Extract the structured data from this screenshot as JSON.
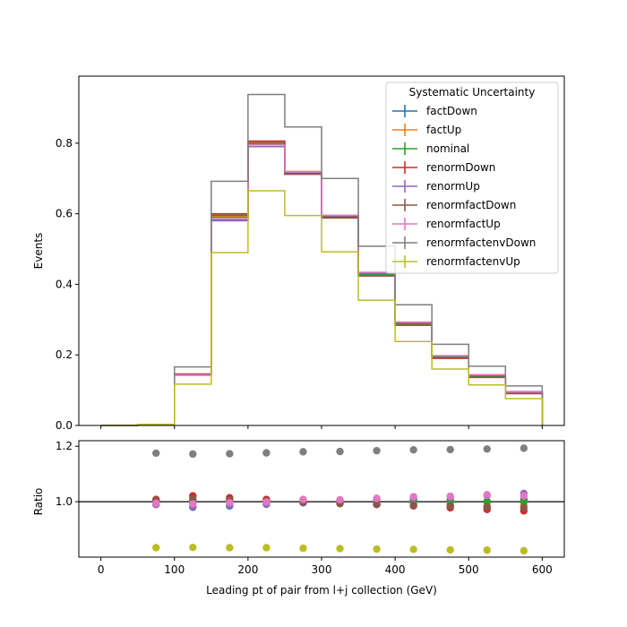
{
  "chart_data": [
    {
      "type": "line",
      "drawstyle": "steps",
      "ylabel": "Events",
      "xlim": [
        -30,
        630
      ],
      "ylim": [
        0,
        0.99
      ],
      "yticks": [
        0.0,
        0.2,
        0.4,
        0.6,
        0.8
      ],
      "ytick_labels": [
        "0.0",
        "0.2",
        "0.4",
        "0.6",
        "0.8"
      ],
      "bin_edges": [
        0,
        50,
        100,
        150,
        200,
        250,
        300,
        350,
        400,
        450,
        500,
        550,
        600
      ],
      "legend": {
        "title": "Systematic Uncertainty",
        "placement": "upper right"
      },
      "series": [
        {
          "name": "factDown",
          "color": "#1f77b4",
          "values": [
            0.0,
            0.003,
            0.143,
            0.582,
            0.79,
            0.712,
            0.592,
            0.428,
            0.29,
            0.195,
            0.14,
            0.094
          ]
        },
        {
          "name": "factUp",
          "color": "#ff7f0e",
          "values": [
            0.0,
            0.003,
            0.145,
            0.592,
            0.8,
            0.714,
            0.59,
            0.426,
            0.286,
            0.192,
            0.138,
            0.092
          ]
        },
        {
          "name": "nominal",
          "color": "#2ca02c",
          "values": [
            0.0,
            0.003,
            0.144,
            0.59,
            0.797,
            0.714,
            0.592,
            0.428,
            0.288,
            0.194,
            0.14,
            0.093
          ]
        },
        {
          "name": "renormDown",
          "color": "#d62728",
          "values": [
            0.0,
            0.003,
            0.146,
            0.6,
            0.806,
            0.713,
            0.59,
            0.424,
            0.284,
            0.19,
            0.136,
            0.09
          ]
        },
        {
          "name": "renormUp",
          "color": "#9467bd",
          "values": [
            0.0,
            0.003,
            0.142,
            0.58,
            0.79,
            0.718,
            0.594,
            0.432,
            0.292,
            0.197,
            0.143,
            0.096
          ]
        },
        {
          "name": "renormfactDown",
          "color": "#8c564b",
          "values": [
            0.0,
            0.003,
            0.145,
            0.596,
            0.802,
            0.712,
            0.588,
            0.424,
            0.284,
            0.191,
            0.137,
            0.091
          ]
        },
        {
          "name": "renormfactUp",
          "color": "#e377c2",
          "values": [
            0.0,
            0.003,
            0.143,
            0.585,
            0.795,
            0.72,
            0.596,
            0.434,
            0.293,
            0.198,
            0.144,
            0.095
          ]
        },
        {
          "name": "renormfactenvDown",
          "color": "#7f7f7f",
          "values": [
            0.0,
            0.003,
            0.166,
            0.692,
            0.938,
            0.846,
            0.7,
            0.508,
            0.342,
            0.23,
            0.168,
            0.112
          ]
        },
        {
          "name": "renormfactenvUp",
          "color": "#bcbd22",
          "values": [
            0.0,
            0.003,
            0.117,
            0.49,
            0.665,
            0.595,
            0.492,
            0.355,
            0.238,
            0.16,
            0.115,
            0.076
          ]
        }
      ]
    },
    {
      "type": "scatter",
      "xlabel": "Leading pt of pair from l+j collection (GeV)",
      "ylabel": "Ratio",
      "xlim": [
        -30,
        630
      ],
      "ylim": [
        0.8,
        1.22
      ],
      "xticks": [
        0,
        100,
        200,
        300,
        400,
        500,
        600
      ],
      "xtick_labels": [
        "0",
        "100",
        "200",
        "300",
        "400",
        "500",
        "600"
      ],
      "yticks": [
        1.0,
        1.2
      ],
      "ytick_labels": [
        "1.0",
        "1.2"
      ],
      "reference_line": 1.0,
      "x": [
        75,
        125,
        175,
        225,
        275,
        325,
        375,
        425,
        475,
        525,
        575
      ],
      "series": [
        {
          "name": "factDown",
          "color": "#1f77b4",
          "values": [
            0.99,
            0.98,
            0.985,
            0.991,
            0.996,
            1.0,
            1.0,
            1.006,
            1.005,
            1.0,
            1.008
          ]
        },
        {
          "name": "factUp",
          "color": "#ff7f0e",
          "values": [
            1.007,
            1.003,
            1.004,
            1.003,
            1.0,
            0.997,
            0.995,
            0.993,
            0.99,
            0.986,
            0.988
          ]
        },
        {
          "name": "nominal",
          "color": "#2ca02c",
          "values": [
            1.0,
            1.0,
            1.0,
            1.0,
            1.0,
            1.0,
            1.0,
            1.0,
            1.0,
            1.0,
            1.0
          ]
        },
        {
          "name": "renormDown",
          "color": "#d62728",
          "values": [
            1.008,
            1.021,
            1.014,
            1.008,
            0.998,
            0.997,
            0.99,
            0.985,
            0.978,
            0.972,
            0.967
          ]
        },
        {
          "name": "renormUp",
          "color": "#9467bd",
          "values": [
            0.99,
            0.982,
            0.988,
            0.993,
            1.004,
            1.003,
            1.008,
            1.013,
            1.016,
            1.022,
            1.03
          ]
        },
        {
          "name": "renormfactDown",
          "color": "#8c564b",
          "values": [
            1.005,
            1.01,
            1.006,
            1.003,
            0.997,
            0.993,
            0.99,
            0.986,
            0.984,
            0.98,
            0.978
          ]
        },
        {
          "name": "renormfactUp",
          "color": "#e377c2",
          "values": [
            0.994,
            0.992,
            0.996,
            0.999,
            1.008,
            1.007,
            1.012,
            1.018,
            1.02,
            1.025,
            1.021
          ]
        },
        {
          "name": "renormfactenvDown",
          "color": "#7f7f7f",
          "values": [
            1.175,
            1.172,
            1.173,
            1.176,
            1.18,
            1.181,
            1.184,
            1.187,
            1.188,
            1.19,
            1.193
          ]
        },
        {
          "name": "renormfactenvUp",
          "color": "#bcbd22",
          "values": [
            0.834,
            0.835,
            0.834,
            0.834,
            0.832,
            0.831,
            0.829,
            0.828,
            0.826,
            0.825,
            0.823
          ]
        }
      ]
    }
  ]
}
